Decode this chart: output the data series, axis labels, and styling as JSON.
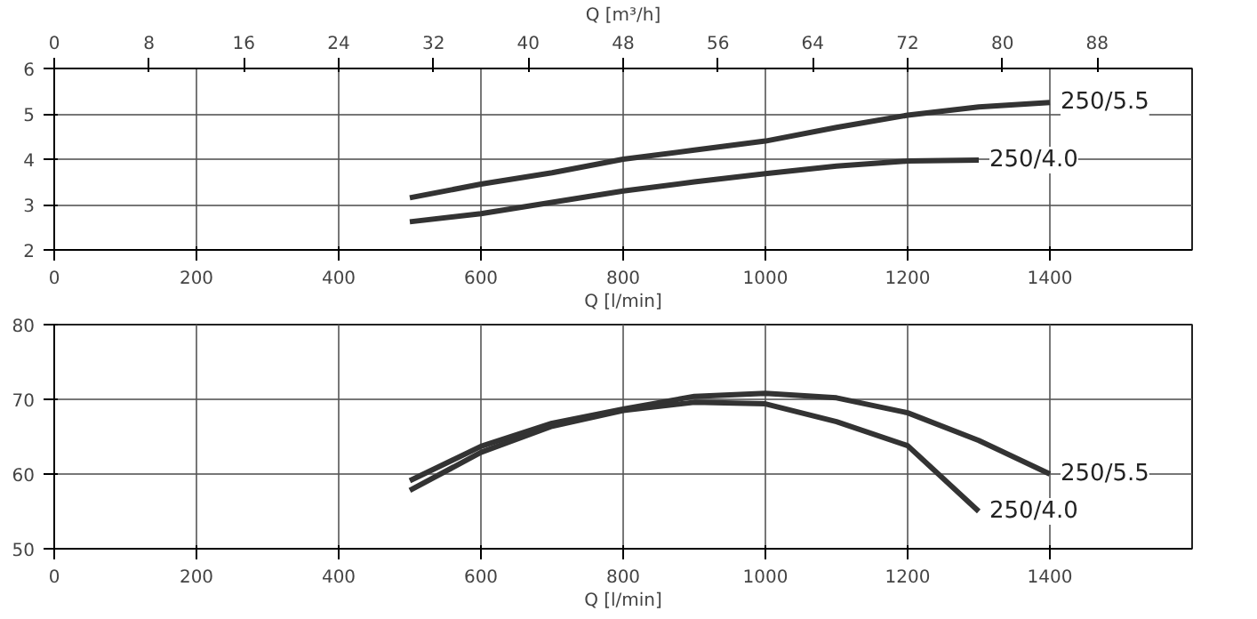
{
  "chart_data": [
    {
      "type": "line",
      "xlim": [
        0,
        1600
      ],
      "xticks": [
        0,
        200,
        400,
        600,
        800,
        1000,
        1200,
        1400
      ],
      "xlabel": "Q [l/min]",
      "x2lim": [
        0,
        96
      ],
      "x2ticks": [
        0,
        8,
        16,
        24,
        32,
        40,
        48,
        56,
        64,
        72,
        80,
        88
      ],
      "x2label": "Q [m³/h]",
      "ylim": [
        2,
        6
      ],
      "yticks": [
        2,
        3,
        4,
        5,
        6
      ],
      "grid": true,
      "series": [
        {
          "name": "250/5.5",
          "color": "#333333",
          "x": [
            500,
            600,
            700,
            800,
            900,
            1000,
            1100,
            1200,
            1300,
            1400
          ],
          "values": [
            3.15,
            3.45,
            3.7,
            4.0,
            4.2,
            4.4,
            4.7,
            4.97,
            5.15,
            5.25
          ]
        },
        {
          "name": "250/4.0",
          "color": "#333333",
          "x": [
            500,
            600,
            700,
            800,
            900,
            1000,
            1100,
            1200,
            1300
          ],
          "values": [
            2.62,
            2.8,
            3.05,
            3.3,
            3.5,
            3.68,
            3.85,
            3.96,
            3.98
          ]
        }
      ]
    },
    {
      "type": "line",
      "xlim": [
        0,
        1600
      ],
      "xticks": [
        0,
        200,
        400,
        600,
        800,
        1000,
        1200,
        1400
      ],
      "xlabel": "Q [l/min]",
      "ylim": [
        50,
        80
      ],
      "yticks": [
        50,
        60,
        70,
        80
      ],
      "grid": true,
      "series": [
        {
          "name": "250/5.5",
          "color": "#333333",
          "x": [
            500,
            600,
            700,
            800,
            900,
            1000,
            1100,
            1200,
            1300,
            1400
          ],
          "values": [
            59.1,
            63.7,
            66.8,
            68.7,
            70.4,
            70.8,
            70.2,
            68.2,
            64.5,
            60.0
          ]
        },
        {
          "name": "250/4.0",
          "color": "#333333",
          "x": [
            500,
            600,
            700,
            800,
            900,
            1000,
            1100,
            1200,
            1300
          ],
          "values": [
            57.8,
            62.9,
            66.4,
            68.5,
            69.6,
            69.4,
            67.0,
            63.8,
            55.0
          ]
        }
      ]
    }
  ]
}
